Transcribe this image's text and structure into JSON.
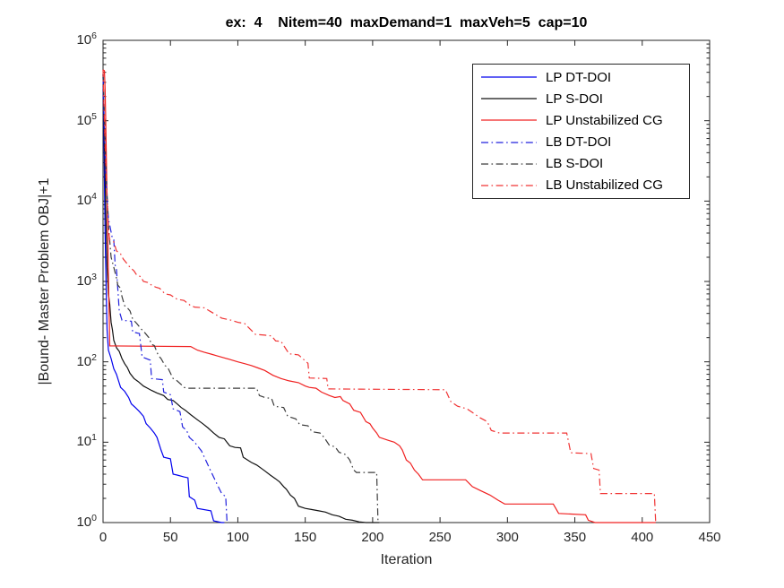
{
  "title": "ex:  4    Nitem=40  maxDemand=1  maxVeh=5  cap=10",
  "colors": {
    "blue": "#0000ee",
    "black": "#111111",
    "gray_black": "#3c3c3c",
    "red": "#f02020",
    "axis": "#262626"
  },
  "legend": {
    "entries": [
      {
        "label": "LP DT-DOI",
        "color": "#0000ee",
        "style": "solid"
      },
      {
        "label": "LP S-DOI",
        "color": "#111111",
        "style": "solid"
      },
      {
        "label": "LP Unstabilized CG",
        "color": "#f02020",
        "style": "solid"
      },
      {
        "label": "LB DT-DOI",
        "color": "#2222dd",
        "style": "dashdot"
      },
      {
        "label": "LB S-DOI",
        "color": "#3c3c3c",
        "style": "dashdot"
      },
      {
        "label": "LB Unstabilized CG",
        "color": "#f03434",
        "style": "dashdot"
      }
    ]
  },
  "chart_data": {
    "type": "line",
    "title": "ex:  4    Nitem=40  maxDemand=1  maxVeh=5  cap=10",
    "xlabel": "Iteration",
    "ylabel": "|Bound- Master Problem OBJ|+1",
    "xlim": [
      0,
      450
    ],
    "ylim_exp": [
      0,
      6
    ],
    "x_ticks": [
      0,
      50,
      100,
      150,
      200,
      250,
      300,
      350,
      400,
      450
    ],
    "y_tick_exponents": [
      0,
      1,
      2,
      3,
      4,
      5,
      6
    ],
    "y_scale": "log10",
    "grid": false,
    "legend_position": "upper-right-inside",
    "series": [
      {
        "name": "LP DT-DOI",
        "color": "#0000ee",
        "style": "solid",
        "points": [
          [
            0,
            380000
          ],
          [
            0.5,
            100000
          ],
          [
            1,
            20000
          ],
          [
            1.5,
            4000
          ],
          [
            2,
            1500
          ],
          [
            3,
            250
          ],
          [
            4,
            140
          ],
          [
            6,
            110
          ],
          [
            8,
            82
          ],
          [
            10,
            70
          ],
          [
            13,
            48
          ],
          [
            16,
            43
          ],
          [
            19,
            36
          ],
          [
            21,
            30
          ],
          [
            24,
            27
          ],
          [
            27,
            24
          ],
          [
            30,
            21
          ],
          [
            32,
            17
          ],
          [
            35,
            15
          ],
          [
            38,
            13
          ],
          [
            40,
            11.5
          ],
          [
            43,
            8
          ],
          [
            45,
            6.5
          ],
          [
            50,
            6.2
          ],
          [
            52,
            4
          ],
          [
            55,
            3.9
          ],
          [
            60,
            3.7
          ],
          [
            63,
            3.6
          ],
          [
            64,
            2.1
          ],
          [
            68,
            1.9
          ],
          [
            70,
            1.5
          ],
          [
            80,
            1.4
          ],
          [
            82,
            1.05
          ],
          [
            88,
            1
          ],
          [
            90,
            1
          ]
        ]
      },
      {
        "name": "LP S-DOI",
        "color": "#111111",
        "style": "solid",
        "points": [
          [
            0,
            380000
          ],
          [
            0.5,
            150000
          ],
          [
            1,
            60000
          ],
          [
            2,
            8000
          ],
          [
            3,
            1500
          ],
          [
            4,
            700
          ],
          [
            5,
            520
          ],
          [
            6,
            310
          ],
          [
            7,
            250
          ],
          [
            8,
            185
          ],
          [
            10,
            150
          ],
          [
            12,
            135
          ],
          [
            14,
            110
          ],
          [
            16,
            95
          ],
          [
            18,
            85
          ],
          [
            20,
            72
          ],
          [
            23,
            62
          ],
          [
            26,
            57
          ],
          [
            30,
            50
          ],
          [
            33,
            47
          ],
          [
            36,
            44
          ],
          [
            40,
            41
          ],
          [
            45,
            38
          ],
          [
            48,
            34
          ],
          [
            52,
            33
          ],
          [
            55,
            30
          ],
          [
            58,
            27
          ],
          [
            61,
            25
          ],
          [
            65,
            22
          ],
          [
            70,
            19
          ],
          [
            74,
            17
          ],
          [
            78,
            15
          ],
          [
            82,
            13
          ],
          [
            86,
            11.5
          ],
          [
            90,
            11
          ],
          [
            94,
            9
          ],
          [
            98,
            8.6
          ],
          [
            102,
            8.5
          ],
          [
            104,
            6.5
          ],
          [
            110,
            5.6
          ],
          [
            114,
            5.2
          ],
          [
            120,
            4.4
          ],
          [
            124,
            3.9
          ],
          [
            128,
            3.5
          ],
          [
            131,
            3.2
          ],
          [
            134,
            2.8
          ],
          [
            136,
            2.6
          ],
          [
            139,
            2.2
          ],
          [
            142,
            2
          ],
          [
            145,
            1.6
          ],
          [
            150,
            1.5
          ],
          [
            155,
            1.45
          ],
          [
            160,
            1.4
          ],
          [
            165,
            1.35
          ],
          [
            170,
            1.25
          ],
          [
            175,
            1.2
          ],
          [
            180,
            1.1
          ],
          [
            185,
            1.07
          ],
          [
            190,
            1.02
          ],
          [
            195,
            1
          ],
          [
            205,
            1
          ]
        ]
      },
      {
        "name": "LP Unstabilized CG",
        "color": "#f02020",
        "style": "solid",
        "points": [
          [
            0,
            430000
          ],
          [
            1,
            420000
          ],
          [
            1.5,
            250000
          ],
          [
            2,
            100000
          ],
          [
            2.5,
            30000
          ],
          [
            3,
            10000
          ],
          [
            3.5,
            4000
          ],
          [
            4,
            1200
          ],
          [
            4.5,
            400
          ],
          [
            5,
            158
          ],
          [
            65,
            155
          ],
          [
            70,
            140
          ],
          [
            75,
            132
          ],
          [
            80,
            125
          ],
          [
            85,
            118
          ],
          [
            90,
            112
          ],
          [
            95,
            106
          ],
          [
            100,
            100
          ],
          [
            105,
            95
          ],
          [
            110,
            90
          ],
          [
            115,
            84
          ],
          [
            120,
            78
          ],
          [
            126,
            68
          ],
          [
            132,
            62
          ],
          [
            138,
            58
          ],
          [
            145,
            55
          ],
          [
            150,
            50
          ],
          [
            153,
            48
          ],
          [
            158,
            47
          ],
          [
            162,
            42
          ],
          [
            168,
            38
          ],
          [
            172,
            36
          ],
          [
            176,
            37
          ],
          [
            178,
            33
          ],
          [
            183,
            30
          ],
          [
            186,
            25
          ],
          [
            191,
            23.5
          ],
          [
            195,
            18
          ],
          [
            198,
            17
          ],
          [
            200,
            15
          ],
          [
            203,
            13
          ],
          [
            205,
            11.5
          ],
          [
            212,
            10.5
          ],
          [
            216,
            10
          ],
          [
            220,
            9
          ],
          [
            222,
            8
          ],
          [
            225,
            6
          ],
          [
            228,
            5.5
          ],
          [
            231,
            4.5
          ],
          [
            234,
            4
          ],
          [
            237,
            3.4
          ],
          [
            269,
            3.4
          ],
          [
            274,
            2.8
          ],
          [
            280,
            2.5
          ],
          [
            287,
            2.2
          ],
          [
            293,
            1.9
          ],
          [
            298,
            1.7
          ],
          [
            334,
            1.7
          ],
          [
            338,
            1.3
          ],
          [
            358,
            1.25
          ],
          [
            360,
            1.07
          ],
          [
            365,
            1
          ],
          [
            410,
            1
          ]
        ]
      },
      {
        "name": "LB DT-DOI",
        "color": "#2222dd",
        "style": "dashdot",
        "points": [
          [
            0,
            350000
          ],
          [
            1,
            80000
          ],
          [
            2,
            20000
          ],
          [
            4,
            6000
          ],
          [
            5,
            5000
          ],
          [
            7,
            3400
          ],
          [
            8,
            3300
          ],
          [
            9,
            1600
          ],
          [
            10,
            1400
          ],
          [
            11,
            800
          ],
          [
            12,
            430
          ],
          [
            14,
            330
          ],
          [
            21,
            320
          ],
          [
            22,
            235
          ],
          [
            27,
            225
          ],
          [
            29,
            115
          ],
          [
            35,
            105
          ],
          [
            36,
            62
          ],
          [
            44,
            60
          ],
          [
            45,
            42
          ],
          [
            50,
            39
          ],
          [
            52,
            26
          ],
          [
            57,
            24
          ],
          [
            59,
            15.5
          ],
          [
            62,
            14
          ],
          [
            64,
            11.5
          ],
          [
            68,
            10
          ],
          [
            70,
            9
          ],
          [
            73,
            7.8
          ],
          [
            76,
            6.1
          ],
          [
            79,
            4.7
          ],
          [
            82,
            3.7
          ],
          [
            85,
            2.9
          ],
          [
            88,
            2.3
          ],
          [
            91,
            2.1
          ],
          [
            92,
            1
          ],
          [
            93,
            1
          ]
        ]
      },
      {
        "name": "LB S-DOI",
        "color": "#3c3c3c",
        "style": "dashdot",
        "points": [
          [
            0,
            380000
          ],
          [
            1,
            120000
          ],
          [
            2,
            30000
          ],
          [
            4,
            5000
          ],
          [
            6,
            2000
          ],
          [
            8,
            1500
          ],
          [
            10,
            1100
          ],
          [
            11,
            900
          ],
          [
            13,
            820
          ],
          [
            14,
            650
          ],
          [
            16,
            500
          ],
          [
            18,
            470
          ],
          [
            20,
            430
          ],
          [
            22,
            340
          ],
          [
            25,
            300
          ],
          [
            28,
            260
          ],
          [
            31,
            230
          ],
          [
            34,
            200
          ],
          [
            36,
            165
          ],
          [
            38,
            160
          ],
          [
            41,
            120
          ],
          [
            43,
            110
          ],
          [
            46,
            90
          ],
          [
            48,
            85
          ],
          [
            52,
            62
          ],
          [
            55,
            58
          ],
          [
            58,
            52
          ],
          [
            60,
            48
          ],
          [
            63,
            47
          ],
          [
            114,
            47
          ],
          [
            116,
            38
          ],
          [
            120,
            36
          ],
          [
            125,
            35
          ],
          [
            127,
            28
          ],
          [
            134,
            27
          ],
          [
            137,
            21
          ],
          [
            143,
            19.5
          ],
          [
            146,
            16.5
          ],
          [
            152,
            16
          ],
          [
            155,
            13.5
          ],
          [
            161,
            13
          ],
          [
            164,
            11.5
          ],
          [
            168,
            9.1
          ],
          [
            172,
            8.8
          ],
          [
            175,
            7.5
          ],
          [
            180,
            7
          ],
          [
            183,
            6
          ],
          [
            186,
            4.5
          ],
          [
            188,
            4.2
          ],
          [
            203,
            4.2
          ],
          [
            204,
            1
          ],
          [
            205,
            1
          ]
        ]
      },
      {
        "name": "LB Unstabilized CG",
        "color": "#f03434",
        "style": "dashdot",
        "points": [
          [
            0,
            430000
          ],
          [
            1,
            100000
          ],
          [
            2,
            30000
          ],
          [
            3,
            10000
          ],
          [
            4,
            4500
          ],
          [
            5,
            3300
          ],
          [
            8,
            3100
          ],
          [
            10,
            2400
          ],
          [
            13,
            2200
          ],
          [
            15,
            1900
          ],
          [
            18,
            1650
          ],
          [
            20,
            1500
          ],
          [
            23,
            1350
          ],
          [
            25,
            1200
          ],
          [
            28,
            1150
          ],
          [
            30,
            1000
          ],
          [
            33,
            975
          ],
          [
            36,
            900
          ],
          [
            39,
            850
          ],
          [
            42,
            820
          ],
          [
            46,
            700
          ],
          [
            50,
            680
          ],
          [
            55,
            600
          ],
          [
            60,
            580
          ],
          [
            65,
            500
          ],
          [
            68,
            480
          ],
          [
            75,
            470
          ],
          [
            80,
            420
          ],
          [
            88,
            350
          ],
          [
            95,
            330
          ],
          [
            100,
            310
          ],
          [
            105,
            300
          ],
          [
            113,
            220
          ],
          [
            120,
            215
          ],
          [
            125,
            210
          ],
          [
            128,
            182
          ],
          [
            132,
            180
          ],
          [
            138,
            126
          ],
          [
            145,
            122
          ],
          [
            152,
            96
          ],
          [
            153,
            63
          ],
          [
            166,
            62
          ],
          [
            167,
            46
          ],
          [
            254,
            45
          ],
          [
            258,
            32
          ],
          [
            263,
            28
          ],
          [
            270,
            26
          ],
          [
            274,
            23.5
          ],
          [
            280,
            20
          ],
          [
            285,
            18
          ],
          [
            288,
            14
          ],
          [
            291,
            13.5
          ],
          [
            294,
            13
          ],
          [
            344,
            13
          ],
          [
            347,
            7.4
          ],
          [
            362,
            7.2
          ],
          [
            364,
            4.7
          ],
          [
            368,
            4.5
          ],
          [
            369,
            2.3
          ],
          [
            409,
            2.3
          ],
          [
            410,
            1
          ]
        ]
      }
    ]
  }
}
